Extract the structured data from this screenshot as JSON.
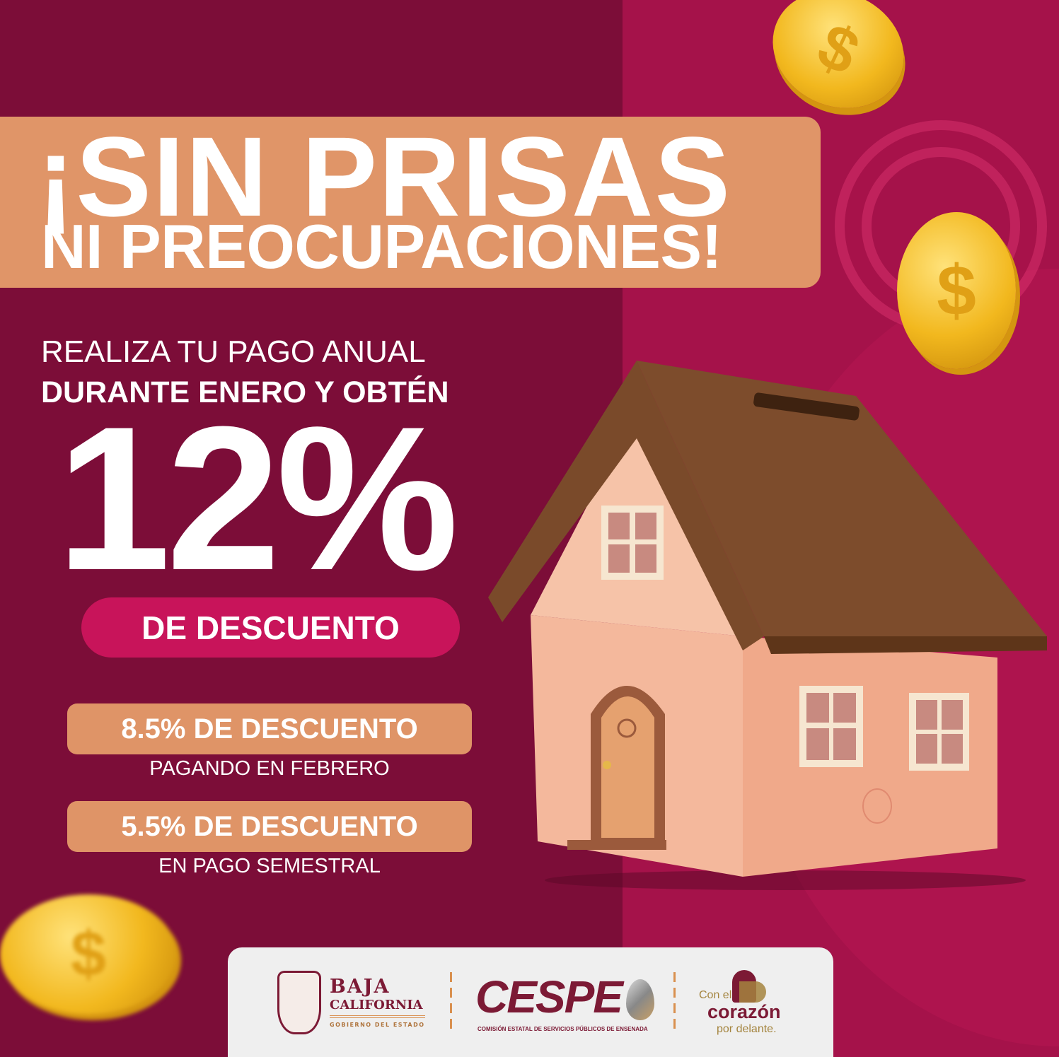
{
  "headline": {
    "line1": "¡SIN PRISAS",
    "line2": "NI PREOCUPACIONES!"
  },
  "offer": {
    "line1": "REALIZA TU PAGO ANUAL",
    "line2": "DURANTE ENERO Y OBTÉN",
    "discount": "12%",
    "discount_label": "DE DESCUENTO"
  },
  "options": [
    {
      "title": "8.5% DE DESCUENTO",
      "subtitle": "PAGANDO EN FEBRERO"
    },
    {
      "title": "5.5% DE DESCUENTO",
      "subtitle": "EN PAGO SEMESTRAL"
    }
  ],
  "footer": {
    "gov": {
      "line1": "BAJA",
      "line2": "CALIFORNIA",
      "line3": "GOBIERNO DEL ESTADO"
    },
    "cespe": {
      "name": "CESPE",
      "subtitle": "COMISIÓN ESTATAL DE SERVICIOS PÚBLICOS DE ENSENADA"
    },
    "slogan": {
      "line1": "Con el",
      "line2": "corazón",
      "line3": "por delante."
    }
  },
  "coin_symbol": "$",
  "colors": {
    "background": "#7c0d38",
    "accent_orange": "#e09568",
    "accent_magenta": "#c8145a",
    "brand": "#7c1a35"
  }
}
